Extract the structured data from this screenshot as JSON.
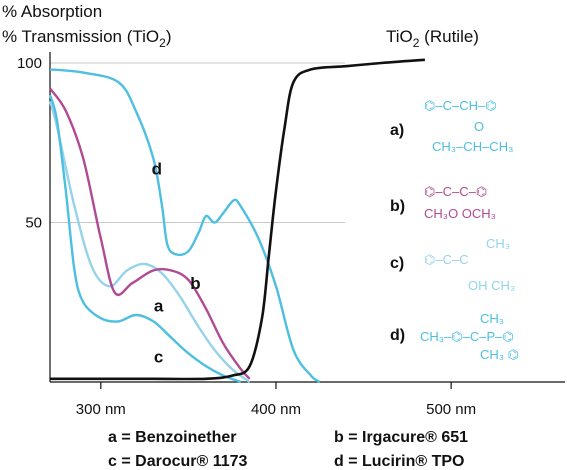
{
  "chart_data": {
    "type": "line",
    "ylabel_lines": [
      "% Absorption",
      "% Transmission (TiO",
      "2",
      ")"
    ],
    "rutile_label": [
      "TiO",
      "2",
      " (Rutile)"
    ],
    "xlim": [
      271,
      565
    ],
    "ylim": [
      0,
      100
    ],
    "x_ticks": [
      300,
      400,
      500
    ],
    "x_tick_labels": [
      "300 nm",
      "400 nm",
      "500 nm"
    ],
    "y_ticks": [
      50,
      100
    ],
    "y_tick_labels": [
      "50",
      "100"
    ],
    "grid": {
      "horizontal_at": [
        50,
        100
      ]
    },
    "colors": {
      "cyan": "#4dbfe0",
      "magenta": "#b04a95",
      "lightblue": "#95d3ea",
      "black": "#111111"
    },
    "series": [
      {
        "label": "a",
        "color_key": "lightblue",
        "x": [
          271,
          275,
          285,
          295,
          305,
          315,
          325,
          335,
          345,
          355,
          365,
          375,
          385
        ],
        "y": [
          88,
          80,
          55,
          36,
          30,
          35,
          37,
          34,
          27,
          18,
          10,
          4,
          0
        ]
      },
      {
        "label": "b",
        "color_key": "magenta",
        "x": [
          271,
          280,
          290,
          300,
          308,
          318,
          330,
          340,
          350,
          360,
          370,
          380,
          385
        ],
        "y": [
          92,
          85,
          70,
          45,
          28,
          31,
          35,
          35,
          32,
          23,
          12,
          4,
          1
        ]
      },
      {
        "label": "c",
        "color_key": "cyan",
        "x": [
          271,
          275,
          280,
          285,
          290,
          300,
          310,
          320,
          330,
          340,
          350,
          360,
          370,
          380
        ],
        "y": [
          90,
          82,
          60,
          35,
          25,
          20,
          19,
          21,
          19,
          14,
          9,
          5,
          2,
          0
        ]
      },
      {
        "label": "d",
        "color_key": "cyan",
        "x": [
          271,
          290,
          310,
          320,
          330,
          335,
          338,
          343,
          350,
          356,
          360,
          365,
          370,
          376,
          380,
          390,
          400,
          410,
          420,
          425
        ],
        "y": [
          98,
          97,
          94,
          85,
          70,
          55,
          43,
          40,
          41,
          47,
          52,
          50,
          53,
          57,
          55,
          45,
          30,
          10,
          2,
          0
        ]
      },
      {
        "label": "",
        "color_key": "black",
        "x": [
          271,
          300,
          330,
          360,
          375,
          385,
          392,
          396,
          400,
          405,
          410,
          420,
          440,
          460,
          485
        ],
        "y": [
          1,
          1,
          1,
          1,
          2,
          5,
          20,
          40,
          60,
          80,
          94,
          98,
          99,
          100,
          101
        ]
      }
    ],
    "curve_labels": [
      {
        "text": "d",
        "x": 332,
        "y": 67
      },
      {
        "text": "b",
        "x": 354,
        "y": 31
      },
      {
        "text": "a",
        "x": 333,
        "y": 24
      },
      {
        "text": "c",
        "x": 333,
        "y": 8
      }
    ],
    "structures": [
      {
        "label": "a)",
        "color_key": "cyan",
        "lines": [
          "⌬–C–CH–⌬",
          "O",
          "CH₃–CH–CH₃"
        ]
      },
      {
        "label": "b)",
        "color_key": "magenta",
        "lines": [
          "⌬–C–C–⌬",
          "CH₃O  OCH₃"
        ]
      },
      {
        "label": "c)",
        "color_key": "lightblue",
        "lines": [
          "CH₃",
          "⌬–C–C",
          "OH  CH₃"
        ]
      },
      {
        "label": "d)",
        "color_key": "cyan",
        "lines": [
          "CH₃",
          "CH₃–⌬–C–P–⌬",
          "CH₃  ⌬"
        ]
      }
    ],
    "legend": [
      "a = Benzoinether",
      "b = Irgacure® 651",
      "c = Darocur® 1173",
      "d = Lucirin® TPO"
    ]
  }
}
